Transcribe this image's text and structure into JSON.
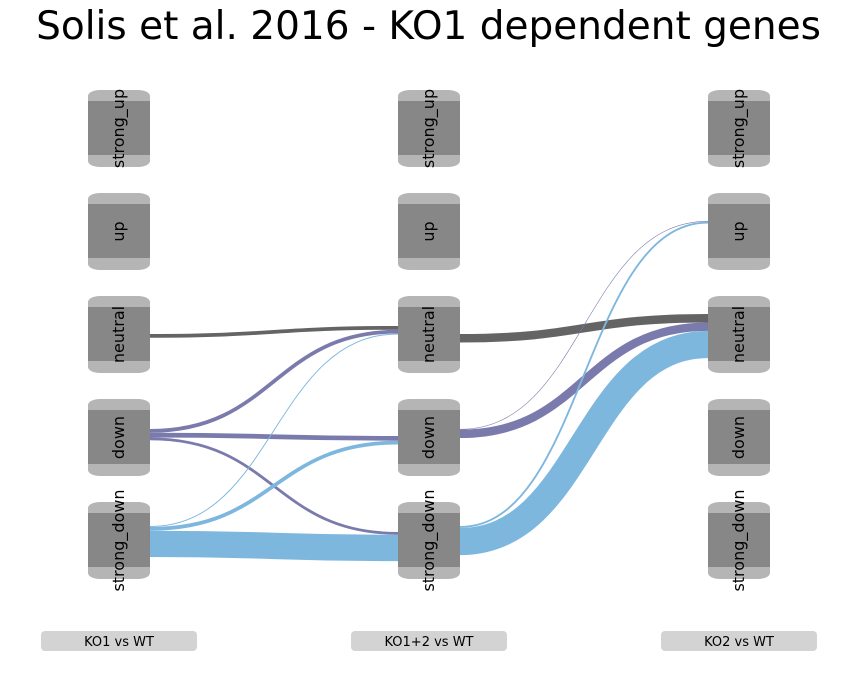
{
  "title": "Solis et al. 2016 - KO1 dependent genes",
  "categories": [
    "strong_up",
    "up",
    "neutral",
    "down",
    "strong_down"
  ],
  "columns": [
    {
      "id": "ko1",
      "label": "KO1 vs WT"
    },
    {
      "id": "ko12",
      "label": "KO1+2 vs WT"
    },
    {
      "id": "ko2",
      "label": "KO2 vs WT"
    }
  ],
  "colors": {
    "node_body": "#878787",
    "node_cap": "#b5b5b5",
    "column_label_bg": "#d3d3d3",
    "neutral_flow": "#646464",
    "down_flow": "#7a7aac",
    "strong_down_flow": "#7eb7de"
  },
  "flows": [
    {
      "stage": 0,
      "source": "neutral",
      "target": "neutral",
      "value": 4,
      "color_key": "neutral_flow"
    },
    {
      "stage": 0,
      "source": "down",
      "target": "neutral",
      "value": 4,
      "color_key": "down_flow"
    },
    {
      "stage": 0,
      "source": "down",
      "target": "down",
      "value": 5,
      "color_key": "down_flow"
    },
    {
      "stage": 0,
      "source": "down",
      "target": "strong_down",
      "value": 3,
      "color_key": "down_flow"
    },
    {
      "stage": 0,
      "source": "strong_down",
      "target": "neutral",
      "value": 1,
      "color_key": "strong_down_flow"
    },
    {
      "stage": 0,
      "source": "strong_down",
      "target": "down",
      "value": 4,
      "color_key": "strong_down_flow"
    },
    {
      "stage": 0,
      "source": "strong_down",
      "target": "strong_down",
      "value": 28,
      "color_key": "strong_down_flow"
    },
    {
      "stage": 1,
      "source": "neutral",
      "target": "neutral",
      "value": 9,
      "color_key": "neutral_flow"
    },
    {
      "stage": 1,
      "source": "down",
      "target": "up",
      "value": 0.3,
      "color_key": "down_flow"
    },
    {
      "stage": 1,
      "source": "down",
      "target": "neutral",
      "value": 9,
      "color_key": "down_flow"
    },
    {
      "stage": 1,
      "source": "strong_down",
      "target": "up",
      "value": 2,
      "color_key": "strong_down_flow"
    },
    {
      "stage": 1,
      "source": "strong_down",
      "target": "neutral",
      "value": 29,
      "color_key": "strong_down_flow"
    }
  ]
}
